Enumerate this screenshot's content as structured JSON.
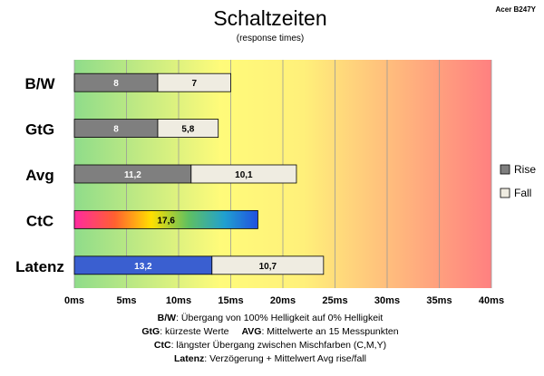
{
  "model_label": "Acer B247Y",
  "chart_data": {
    "type": "bar",
    "title": "Schaltzeiten",
    "subtitle": "(response times)",
    "orientation": "horizontal",
    "stacked": true,
    "categories": [
      "B/W",
      "GtG",
      "Avg",
      "CtC",
      "Latenz"
    ],
    "series": [
      {
        "name": "Rise",
        "values": [
          8,
          8,
          11.2,
          null,
          13.2
        ],
        "labels": [
          "8",
          "8",
          "11,2",
          "",
          "13,2"
        ]
      },
      {
        "name": "Fall",
        "values": [
          7,
          5.8,
          10.1,
          null,
          10.7
        ],
        "labels": [
          "7",
          "5,8",
          "10,1",
          "",
          "10,7"
        ]
      }
    ],
    "single_values": [
      {
        "category": "CtC",
        "value": 17.6,
        "label": "17,6"
      }
    ],
    "xlim": [
      0,
      40
    ],
    "x_ticks": [
      0,
      5,
      10,
      15,
      20,
      25,
      30,
      35,
      40
    ],
    "x_tick_labels": [
      "0ms",
      "5ms",
      "10ms",
      "15ms",
      "20ms",
      "25ms",
      "30ms",
      "35ms",
      "40ms"
    ],
    "grid": true,
    "legend_position": "right",
    "background": "gradient green-yellow-red",
    "colors": {
      "rise": "#7f7f7f",
      "fall": "#efece1",
      "latency_rise": "#3a5fd0",
      "gradient_green": "#8fdc8a",
      "gradient_yellow": "#fffb7a",
      "gradient_red": "#ff8080"
    }
  },
  "footnotes": [
    {
      "key": "B/W",
      "text": ":  Übergang von 100% Helligkeit auf 0% Helligkeit"
    },
    {
      "key": "GtG",
      "text": ": kürzeste  Werte",
      "key2": "AVG",
      "text2": ":  Mittelwerte  an 15 Messpunkten"
    },
    {
      "key": "CtC",
      "text": ":  längster Übergang  zwischen Mischfarben  (C,M,Y)"
    },
    {
      "key": "Latenz",
      "text": ": Verzögerung  + Mittelwert  Avg rise/fall"
    }
  ]
}
